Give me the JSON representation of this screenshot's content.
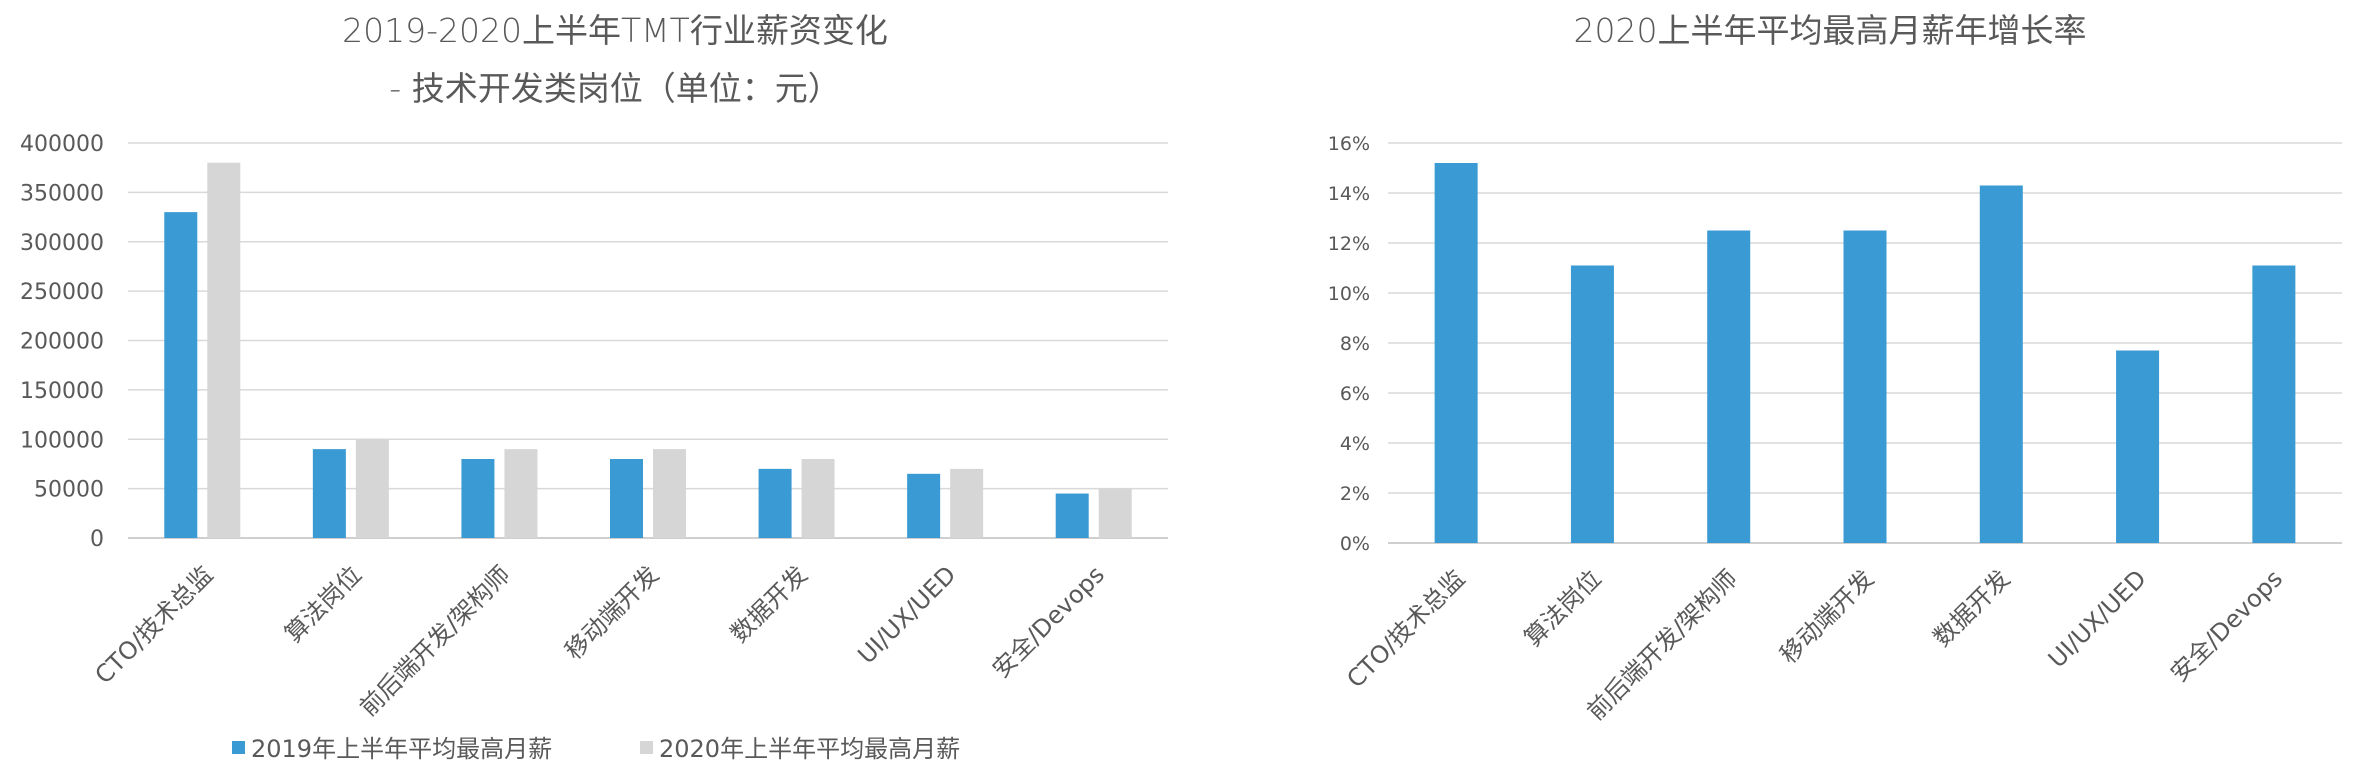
{
  "chart_data": [
    {
      "type": "bar",
      "title": "2019-2020上半年TMT行业薪资变化",
      "subtitle": "- 技术开发类岗位（单位：元）",
      "categories": [
        "CTO/技术总监",
        "算法岗位",
        "前后端开发/架构师",
        "移动端开发",
        "数据开发",
        "UI/UX/UED",
        "安全/Devops"
      ],
      "series": [
        {
          "name": "2019年上半年平均最高月薪",
          "values": [
            330000,
            90000,
            80000,
            80000,
            70000,
            65000,
            45000
          ],
          "color": "#3a9ad3"
        },
        {
          "name": "2020年上半年平均最高月薪",
          "values": [
            380000,
            100000,
            90000,
            90000,
            80000,
            70000,
            50000
          ],
          "color": "#d6d6d6"
        }
      ],
      "ylim": [
        0,
        400000
      ],
      "yticks": [
        0,
        50000,
        100000,
        150000,
        200000,
        250000,
        300000,
        350000,
        400000
      ],
      "grid": true,
      "legend": "bottom"
    },
    {
      "type": "bar",
      "title": "2020上半年平均最高月薪年增长率",
      "categories": [
        "CTO/技术总监",
        "算法岗位",
        "前后端开发/架构师",
        "移动端开发",
        "数据开发",
        "UI/UX/UED",
        "安全/Devops"
      ],
      "series": [
        {
          "values": [
            0.152,
            0.111,
            0.125,
            0.125,
            0.143,
            0.077,
            0.111
          ],
          "color": "#3a9ad3"
        }
      ],
      "ylim": [
        0,
        0.16
      ],
      "yticks": [
        "0%",
        "2%",
        "4%",
        "6%",
        "8%",
        "10%",
        "12%",
        "14%",
        "16%"
      ],
      "grid": true,
      "legend": "none"
    }
  ]
}
